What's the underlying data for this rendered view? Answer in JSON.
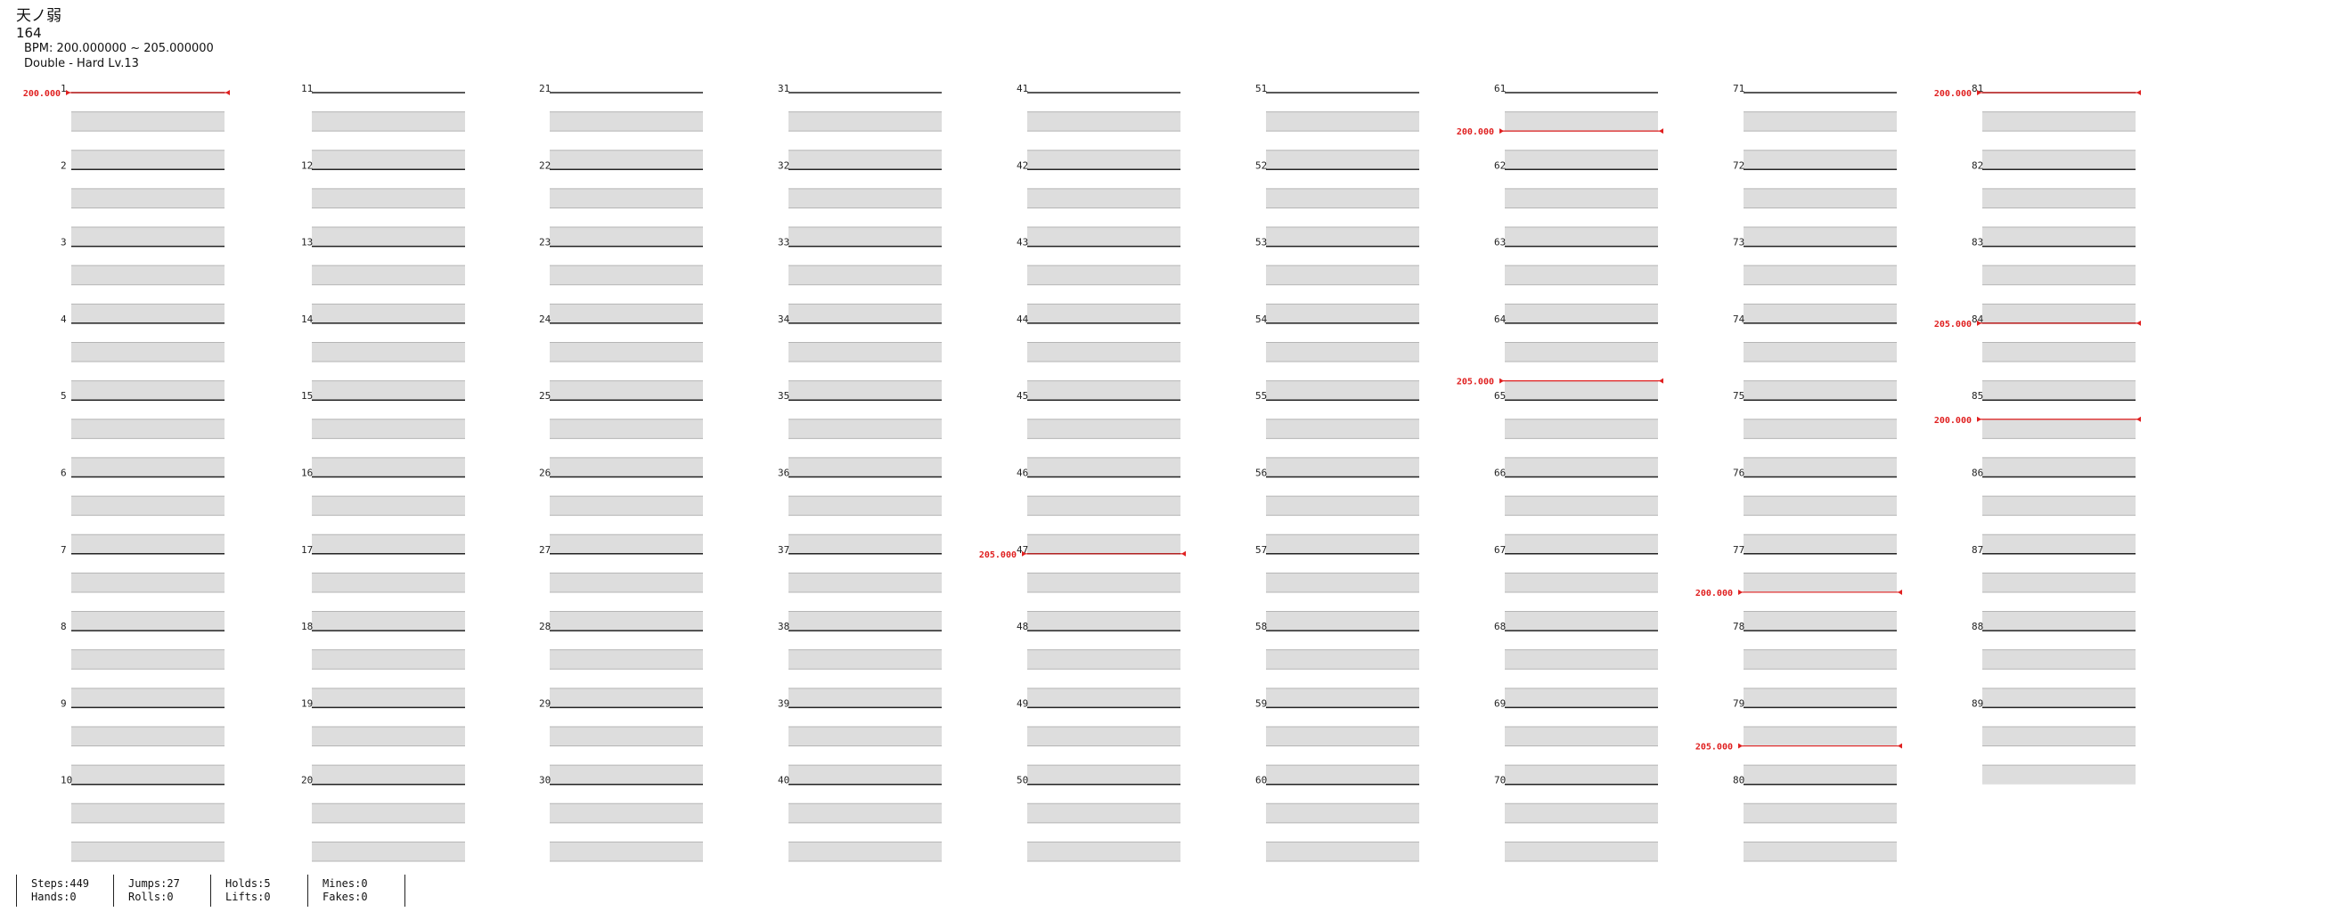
{
  "song": {
    "title": "天ノ弱",
    "number": "164",
    "bpm_range": "BPM: 200.000000 ~ 205.000000",
    "difficulty": "Double - Hard Lv.13"
  },
  "measure_numbers": [
    "1",
    "2",
    "3",
    "4",
    "5",
    "6",
    "7",
    "8",
    "9",
    "10",
    "11",
    "12",
    "13",
    "14",
    "15",
    "16",
    "17",
    "18",
    "19",
    "20",
    "21",
    "22",
    "23",
    "24",
    "25",
    "26",
    "27",
    "28",
    "29",
    "30",
    "31",
    "32",
    "33",
    "34",
    "35",
    "36",
    "37",
    "38",
    "39",
    "40",
    "41",
    "42",
    "43",
    "44",
    "45",
    "46",
    "47",
    "48",
    "49",
    "50",
    "51",
    "52",
    "53",
    "54",
    "55",
    "56",
    "57",
    "58",
    "59",
    "60",
    "61",
    "62",
    "63",
    "64",
    "65",
    "66",
    "67",
    "68",
    "69",
    "70",
    "71",
    "72",
    "73",
    "74",
    "75",
    "76",
    "77",
    "78",
    "79",
    "80",
    "81",
    "82",
    "83",
    "84",
    "85",
    "86",
    "87",
    "88",
    "89"
  ],
  "bpm_changes": [
    {
      "column": 1,
      "measure": 1,
      "beat": 0,
      "label": "200.000"
    },
    {
      "column": 5,
      "measure": 7,
      "beat": 0,
      "label": "205.000"
    },
    {
      "column": 7,
      "measure": 1,
      "beat": 2,
      "label": "200.000"
    },
    {
      "column": 7,
      "measure": 4,
      "beat": 3,
      "label": "205.000"
    },
    {
      "column": 8,
      "measure": 7,
      "beat": 2,
      "label": "200.000"
    },
    {
      "column": 8,
      "measure": 9,
      "beat": 2,
      "label": "205.000"
    },
    {
      "column": 9,
      "measure": 1,
      "beat": 0,
      "label": "200.000"
    },
    {
      "column": 9,
      "measure": 4,
      "beat": 0,
      "label": "205.000"
    },
    {
      "column": 9,
      "measure": 5,
      "beat": 1,
      "label": "200.000"
    }
  ],
  "arrow_colors": {
    "red": "#e8383a",
    "blue": "#2f54e0",
    "purple": "#a040e8",
    "hold": "#8ae08a"
  },
  "stats": [
    {
      "top": "Steps:449",
      "bottom": "Hands:0"
    },
    {
      "top": "Jumps:27",
      "bottom": "Rolls:0"
    },
    {
      "top": "Holds:5",
      "bottom": "Lifts:0"
    },
    {
      "top": "Mines:0",
      "bottom": "Fakes:0"
    }
  ]
}
